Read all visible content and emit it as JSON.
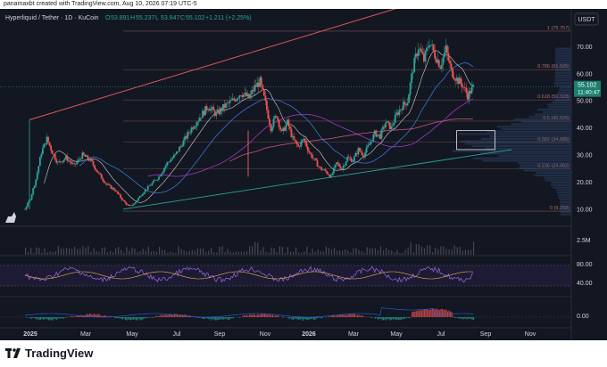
{
  "watermark_note": "panamaxbt created with TradingView.com, Aug 10, 2026 07:19 UTC-5",
  "brand": "TradingView",
  "chart_data": {
    "type": "candlestick",
    "legend": {
      "symbol": "Hyperliquid / Tether · 1D · KuCoin",
      "o_label": "O",
      "o": "53.891",
      "h_label": "H",
      "h": "55.237",
      "l_label": "L",
      "l": "53.847",
      "c_label": "C",
      "c": "55.102",
      "change": "+1.211 (+2.25%)"
    },
    "currency": "USDT",
    "price_axis": {
      "ticks": [
        10,
        20,
        30,
        40,
        50,
        60,
        70
      ],
      "labels": [
        "10.00",
        "20.00",
        "30.00",
        "40.00",
        "50.00",
        "60.00",
        "70.00"
      ],
      "range": [
        5,
        80
      ]
    },
    "last_price": {
      "value": 55.102,
      "label": "55.102",
      "countdown": "11:40:47"
    },
    "fib_levels": [
      {
        "ratio": "1",
        "value": 75.757,
        "label": "1 (75.757)"
      },
      {
        "ratio": "0.786",
        "value": 61.505,
        "label": "0.786 (61.505)"
      },
      {
        "ratio": "0.618",
        "value": 50.328,
        "label": "0.618 (50.328)"
      },
      {
        "ratio": "0.5",
        "value": 42.525,
        "label": "0.5 (42.525)"
      },
      {
        "ratio": "0.382",
        "value": 34.685,
        "label": "0.382 (34.685)"
      },
      {
        "ratio": "0.236",
        "value": 24.982,
        "label": "0.236 (24.982)"
      },
      {
        "ratio": "0",
        "value": 9.258,
        "label": "0 (9.258)"
      }
    ],
    "time_axis": [
      "2025",
      "Mar",
      "May",
      "Jul",
      "Sep",
      "Nov",
      "2026",
      "Mar",
      "May",
      "Jul",
      "Sep",
      "Nov"
    ],
    "volume_pane": {
      "label": "2.5M"
    },
    "rsi_pane": {
      "ticks": [
        80,
        40
      ],
      "labels": [
        "80.00",
        "40.00"
      ]
    },
    "macd_pane": {
      "ticks": [
        0
      ],
      "labels": [
        "0.00"
      ]
    },
    "price_path": [
      [
        0,
        10
      ],
      [
        2,
        14
      ],
      [
        4,
        21
      ],
      [
        6,
        31
      ],
      [
        8,
        36
      ],
      [
        10,
        31
      ],
      [
        12,
        27
      ],
      [
        15,
        29
      ],
      [
        18,
        26
      ],
      [
        21,
        30
      ],
      [
        24,
        28
      ],
      [
        27,
        23
      ],
      [
        30,
        19
      ],
      [
        33,
        17
      ],
      [
        36,
        13
      ],
      [
        38,
        11
      ],
      [
        40,
        12
      ],
      [
        43,
        16
      ],
      [
        46,
        19
      ],
      [
        49,
        22
      ],
      [
        52,
        27
      ],
      [
        55,
        30
      ],
      [
        58,
        35
      ],
      [
        61,
        40
      ],
      [
        64,
        44
      ],
      [
        67,
        48
      ],
      [
        70,
        45
      ],
      [
        73,
        48
      ],
      [
        76,
        50
      ],
      [
        79,
        53
      ],
      [
        82,
        51
      ],
      [
        84,
        55
      ],
      [
        86,
        57
      ],
      [
        88,
        49
      ],
      [
        90,
        40
      ],
      [
        92,
        45
      ],
      [
        94,
        38
      ],
      [
        96,
        42
      ],
      [
        98,
        36
      ],
      [
        100,
        33
      ],
      [
        102,
        36
      ],
      [
        104,
        31
      ],
      [
        106,
        28
      ],
      [
        108,
        25
      ],
      [
        110,
        24
      ],
      [
        112,
        22
      ],
      [
        114,
        27
      ],
      [
        116,
        25
      ],
      [
        118,
        29
      ],
      [
        120,
        28
      ],
      [
        122,
        32
      ],
      [
        124,
        30
      ],
      [
        126,
        34
      ],
      [
        128,
        38
      ],
      [
        130,
        37
      ],
      [
        132,
        42
      ],
      [
        134,
        40
      ],
      [
        136,
        45
      ],
      [
        138,
        48
      ],
      [
        140,
        50
      ],
      [
        142,
        62
      ],
      [
        144,
        70
      ],
      [
        146,
        65
      ],
      [
        148,
        72
      ],
      [
        150,
        67
      ],
      [
        152,
        63
      ],
      [
        154,
        69
      ],
      [
        156,
        61
      ],
      [
        158,
        58
      ],
      [
        160,
        56
      ],
      [
        162,
        52
      ],
      [
        164,
        55
      ]
    ],
    "price_day_range": [
      0,
      164
    ],
    "annotations": {
      "upper_channel": [
        [
          0,
          43
        ],
        [
          178,
          97
        ]
      ],
      "lower_trendline": [
        [
          36,
          10
        ],
        [
          178,
          32
        ]
      ],
      "fib_anchor_low": 36,
      "fib_anchor_high": 148,
      "target_box": {
        "x0": 158,
        "x1": 172,
        "y0": 32,
        "y1": 39
      }
    }
  }
}
